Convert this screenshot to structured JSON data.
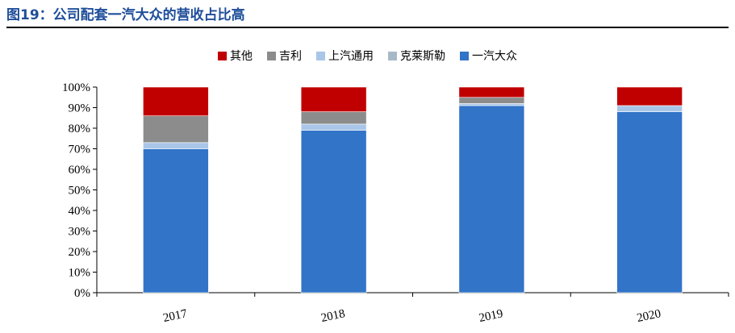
{
  "figure": {
    "title": "图19：公司配套一汽大众的营收占比高"
  },
  "chart_data": {
    "type": "bar",
    "stacked": true,
    "categories": [
      "2017",
      "2018",
      "2019",
      "2020"
    ],
    "series": [
      {
        "name": "一汽大众",
        "color": "#3174c8",
        "values": [
          70,
          79,
          91,
          88
        ]
      },
      {
        "name": "克莱斯勒",
        "color": "#a7b8c8",
        "values": [
          0,
          0,
          0,
          0
        ]
      },
      {
        "name": "上汽通用",
        "color": "#a9c6e8",
        "values": [
          3,
          3,
          1,
          3
        ]
      },
      {
        "name": "吉利",
        "color": "#8c8c8c",
        "values": [
          13,
          6,
          3,
          0
        ]
      },
      {
        "name": "其他",
        "color": "#c00000",
        "values": [
          14,
          12,
          5,
          9
        ]
      }
    ],
    "legend_order": [
      "其他",
      "吉利",
      "上汽通用",
      "克莱斯勒",
      "一汽大众"
    ],
    "yticks": [
      "0%",
      "10%",
      "20%",
      "30%",
      "40%",
      "50%",
      "60%",
      "70%",
      "80%",
      "90%",
      "100%"
    ],
    "ylim": [
      0,
      100
    ],
    "legend_position": "top-center",
    "grid": false
  }
}
